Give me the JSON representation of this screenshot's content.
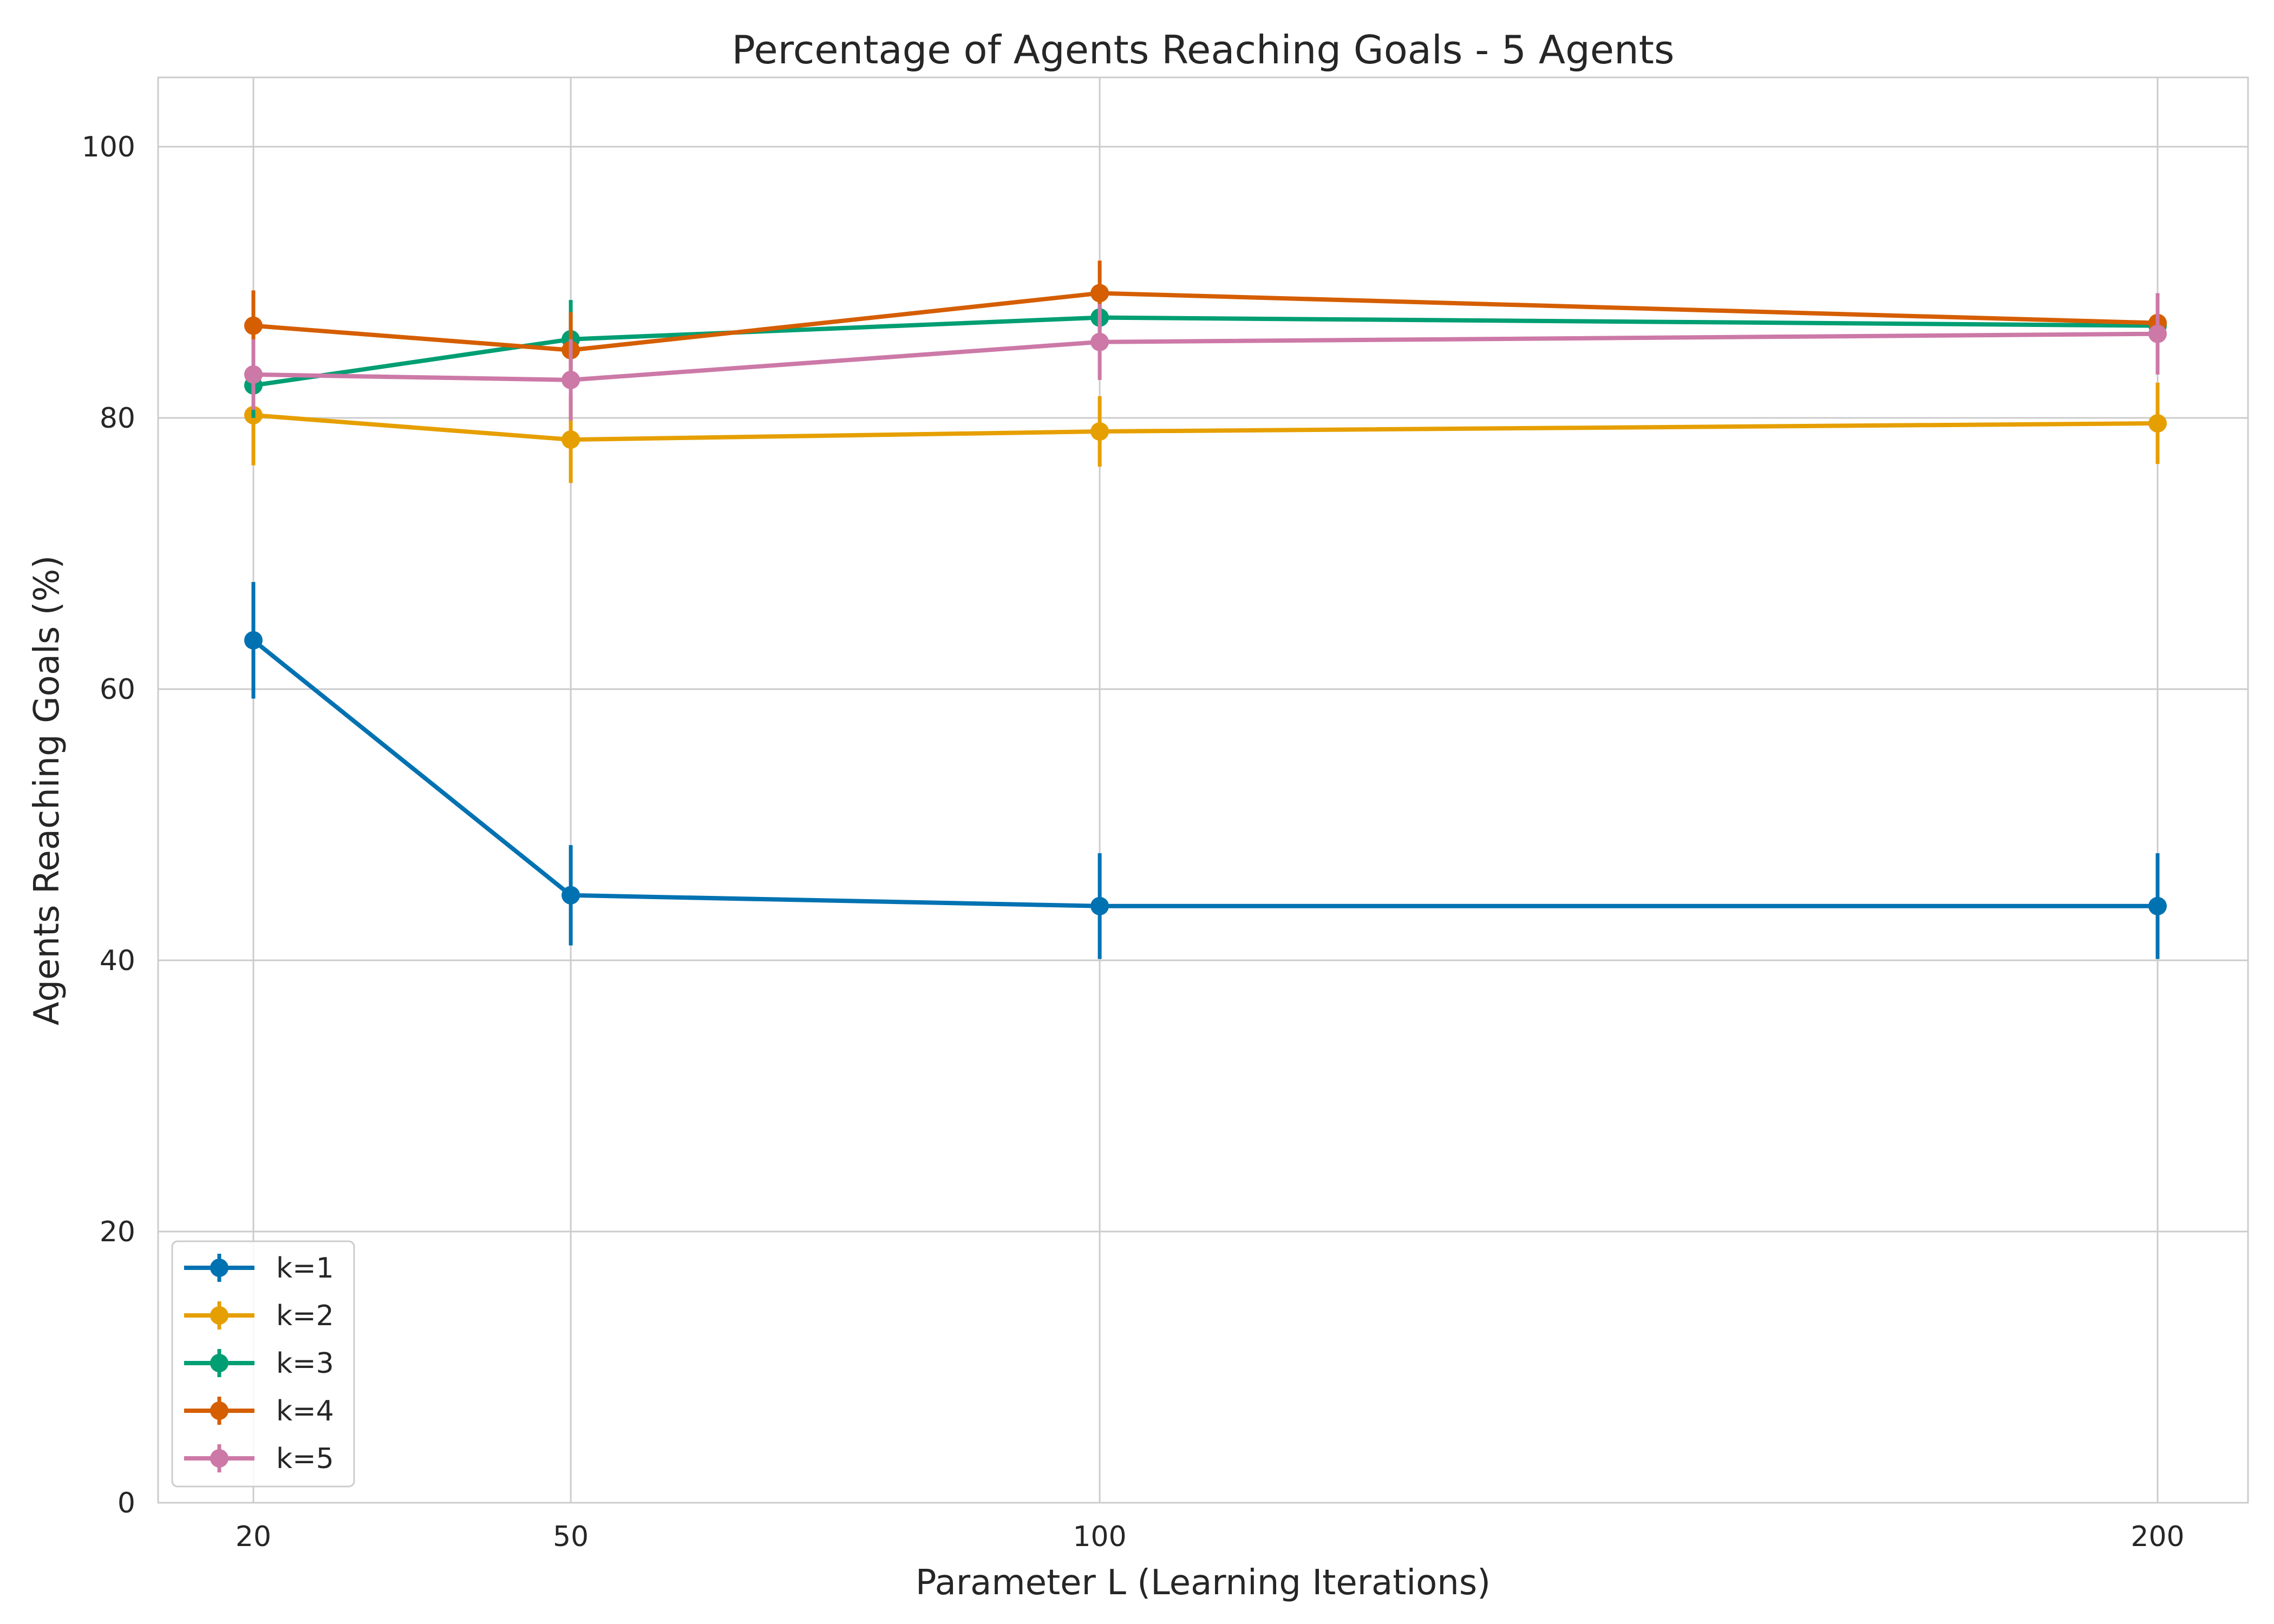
{
  "chart_data": {
    "type": "line",
    "title": "Percentage of Agents Reaching Goals - 5 Agents",
    "xlabel": "Parameter L (Learning Iterations)",
    "ylabel": "Agents Reaching Goals (%)",
    "x": [
      20,
      50,
      100,
      200
    ],
    "x_tick_labels": [
      "20",
      "50",
      "100",
      "200"
    ],
    "y_ticks": [
      0,
      20,
      40,
      60,
      80,
      100
    ],
    "y_tick_labels": [
      "0",
      "20",
      "40",
      "60",
      "80",
      "100"
    ],
    "ylim": [
      0,
      105
    ],
    "xlim": [
      11,
      205
    ],
    "grid": true,
    "legend_position": "lower-left",
    "error_bars": true,
    "series": [
      {
        "name": "k=1",
        "color": "#0072b2",
        "values": [
          63.6,
          44.8,
          44.0,
          44.0
        ],
        "errors": [
          4.3,
          3.7,
          3.9,
          3.9
        ]
      },
      {
        "name": "k=2",
        "color": "#e69f00",
        "values": [
          80.2,
          78.4,
          79.0,
          79.6
        ],
        "errors": [
          3.7,
          3.2,
          2.6,
          3.0
        ]
      },
      {
        "name": "k=3",
        "color": "#009e73",
        "values": [
          82.4,
          85.8,
          87.4,
          86.8
        ],
        "errors": [
          2.4,
          2.9,
          1.2,
          1.0
        ]
      },
      {
        "name": "k=4",
        "color": "#d55e00",
        "values": [
          86.8,
          85.0,
          89.2,
          87.0
        ],
        "errors": [
          2.6,
          2.8,
          2.4,
          1.8
        ]
      },
      {
        "name": "k=5",
        "color": "#cc79a7",
        "values": [
          83.2,
          82.8,
          85.6,
          86.2
        ],
        "errors": [
          2.6,
          3.0,
          2.8,
          3.0
        ]
      }
    ]
  }
}
